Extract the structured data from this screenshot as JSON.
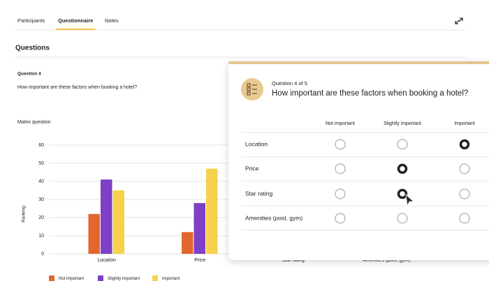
{
  "tabs": [
    "Participants",
    "Questionnaire",
    "Notes"
  ],
  "active_tab": 1,
  "section_title": "Questions",
  "question": {
    "label": "Question 4",
    "text": "How important are these factors when booking a hotel?"
  },
  "chart_data": {
    "type": "bar",
    "title": "Matrix question",
    "y_label": "Ranking",
    "categories": [
      "Location",
      "Price",
      "Star rating",
      "Amenities (pool, gym)"
    ],
    "series": [
      {
        "name": "Not important",
        "color": "#e2672d",
        "values": [
          22,
          12,
          null,
          null
        ]
      },
      {
        "name": "Slightly important",
        "color": "#7d40c6",
        "values": [
          41,
          28,
          null,
          null
        ]
      },
      {
        "name": "Important",
        "color": "#f6d24c",
        "values": [
          35,
          47,
          null,
          null
        ]
      }
    ],
    "ylim": [
      0,
      60
    ],
    "yticks": [
      0,
      10,
      20,
      30,
      40,
      50,
      60
    ],
    "grid": true,
    "legend": "bottom-left"
  },
  "card": {
    "progress": "Question 4 of 5",
    "title": "How important are these factors when booking a hotel?",
    "columns": [
      "Not important",
      "Slightly important",
      "Important"
    ],
    "rows": [
      {
        "label": "Location",
        "selected": 2
      },
      {
        "label": "Price",
        "selected": 1
      },
      {
        "label": "Star rating",
        "selected": 1
      },
      {
        "label": "Amenities (pool, gym)",
        "selected": null
      }
    ]
  }
}
